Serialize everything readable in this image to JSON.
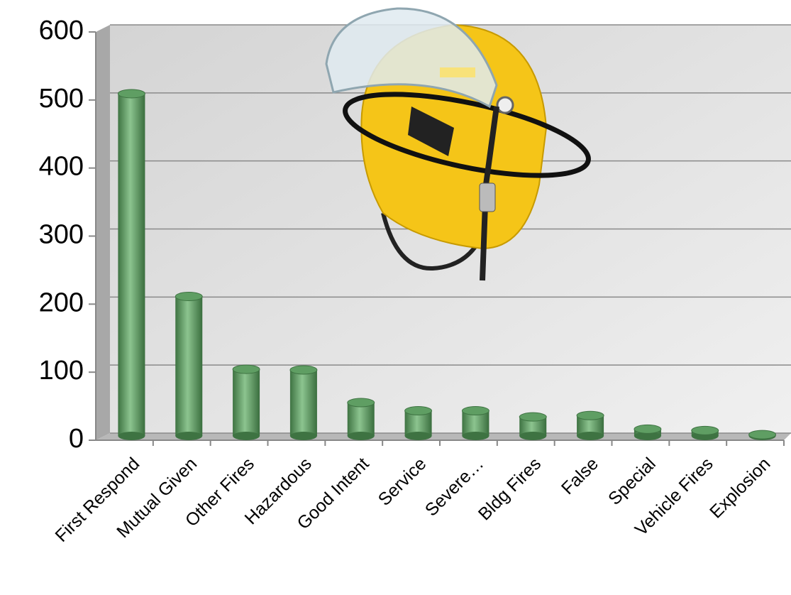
{
  "chart_data": {
    "type": "bar",
    "categories": [
      "First Respond",
      "Mutual Given",
      "Other Fires",
      "Hazardous",
      "Good Intent",
      "Service",
      "Severe…",
      "Bldg Fires",
      "False",
      "Special",
      "Vehicle Fires",
      "Explosion"
    ],
    "values": [
      503,
      205,
      98,
      97,
      49,
      37,
      37,
      28,
      30,
      10,
      8,
      2
    ],
    "color": "#5f9e63",
    "ylim": [
      0,
      600
    ],
    "yticks": [
      0,
      100,
      200,
      300,
      400,
      500,
      600
    ],
    "grid": true
  }
}
